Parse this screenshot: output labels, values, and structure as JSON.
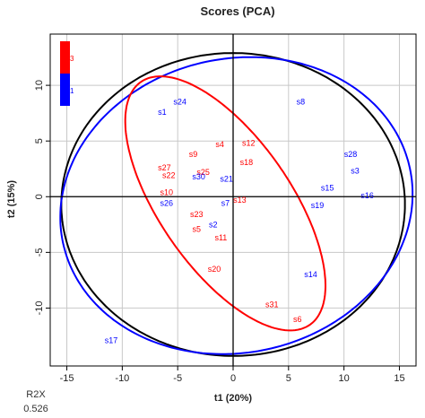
{
  "chart_data": {
    "type": "scatter",
    "title": "Scores (PCA)",
    "xlabel": "t1 (20%)",
    "ylabel": "t2 (15%)",
    "xlim": [
      -16.5,
      16.5
    ],
    "ylim": [
      -15.2,
      14.6
    ],
    "xticks": [
      -15,
      -10,
      -5,
      0,
      5,
      10,
      15
    ],
    "yticks": [
      -10,
      -5,
      0,
      5,
      10
    ],
    "grid": true,
    "colors": {
      "group3": "#ff0000",
      "group1": "#0000ff",
      "grid": "#c8c8c8"
    },
    "legend": {
      "placement": "top-left",
      "entries": [
        {
          "label": "3",
          "color": "#ff0000"
        },
        {
          "label": "1",
          "color": "#0000ff"
        }
      ]
    },
    "series": [
      {
        "group": "3",
        "color": "#ff0000",
        "points": [
          {
            "label": "s4",
            "x": -1.2,
            "y": 4.7
          },
          {
            "label": "s12",
            "x": 1.4,
            "y": 4.8
          },
          {
            "label": "s9",
            "x": -3.6,
            "y": 3.8
          },
          {
            "label": "s18",
            "x": 1.2,
            "y": 3.1
          },
          {
            "label": "s27",
            "x": -6.2,
            "y": 2.6
          },
          {
            "label": "s25",
            "x": -2.7,
            "y": 2.2
          },
          {
            "label": "s22",
            "x": -5.8,
            "y": 1.9
          },
          {
            "label": "s10",
            "x": -6.0,
            "y": 0.4
          },
          {
            "label": "s13",
            "x": 0.6,
            "y": -0.3
          },
          {
            "label": "s23",
            "x": -3.3,
            "y": -1.6
          },
          {
            "label": "s5",
            "x": -3.3,
            "y": -2.9
          },
          {
            "label": "s11",
            "x": -1.1,
            "y": -3.7
          },
          {
            "label": "s20",
            "x": -1.7,
            "y": -6.5
          },
          {
            "label": "s31",
            "x": 3.5,
            "y": -9.7
          },
          {
            "label": "s6",
            "x": 5.8,
            "y": -11.0
          }
        ]
      },
      {
        "group": "1",
        "color": "#0000ff",
        "points": [
          {
            "label": "s24",
            "x": -4.8,
            "y": 8.5
          },
          {
            "label": "s8",
            "x": 6.1,
            "y": 8.5
          },
          {
            "label": "s1",
            "x": -6.4,
            "y": 7.6
          },
          {
            "label": "s28",
            "x": 10.6,
            "y": 3.8
          },
          {
            "label": "s3",
            "x": 11.0,
            "y": 2.3
          },
          {
            "label": "s30",
            "x": -3.1,
            "y": 1.8
          },
          {
            "label": "s21",
            "x": -0.6,
            "y": 1.6
          },
          {
            "label": "s15",
            "x": 8.5,
            "y": 0.8
          },
          {
            "label": "s16",
            "x": 12.1,
            "y": 0.1
          },
          {
            "label": "s19",
            "x": 7.6,
            "y": -0.8
          },
          {
            "label": "s26",
            "x": -6.0,
            "y": -0.6
          },
          {
            "label": "s7",
            "x": -0.7,
            "y": -0.6
          },
          {
            "label": "s2",
            "x": -1.8,
            "y": -2.5
          },
          {
            "label": "s14",
            "x": 7.0,
            "y": -7.0
          },
          {
            "label": "s17",
            "x": -11.0,
            "y": -12.9
          }
        ]
      }
    ],
    "ellipses": [
      {
        "name": "overall",
        "color": "#000000",
        "cx": 0.0,
        "cy": -0.7,
        "rx": 15.5,
        "ry": 13.6,
        "angle": 0
      },
      {
        "name": "group1",
        "color": "#0000ff",
        "cx": 0.3,
        "cy": -0.8,
        "rx": 16.0,
        "ry": 13.2,
        "angle": 12
      },
      {
        "name": "group3",
        "color": "#ff0000",
        "cx": -0.7,
        "cy": -0.6,
        "rx": 13.3,
        "ry": 5.9,
        "angle": -55
      }
    ],
    "footer": {
      "label": "R2X",
      "value": "0.526"
    }
  }
}
